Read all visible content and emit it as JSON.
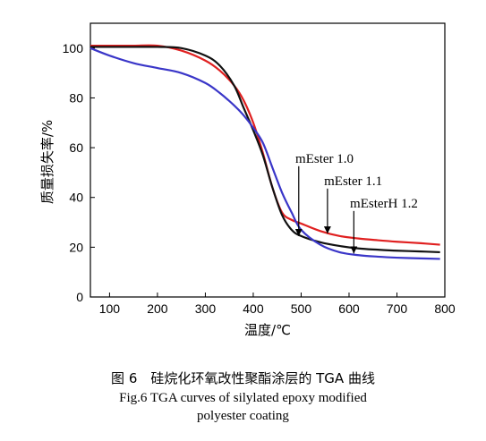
{
  "caption": {
    "zh": "图 6　硅烷化环氧改性聚酯涂层的 TGA 曲线",
    "en_line1": "Fig.6 TGA curves of silylated epoxy modified",
    "en_line2": "polyester coating"
  },
  "chart_data": {
    "type": "line",
    "title": "",
    "xlabel": "温度/℃",
    "ylabel": "质量损失率/%",
    "xlim": [
      60,
      800
    ],
    "ylim": [
      0,
      110
    ],
    "xticks": [
      100,
      200,
      300,
      400,
      500,
      600,
      700,
      800
    ],
    "yticks": [
      0,
      20,
      40,
      60,
      80,
      100
    ],
    "grid": false,
    "legend": "none",
    "series": [
      {
        "color": "#e02020",
        "x": [
          60,
          100,
          150,
          200,
          250,
          300,
          330,
          360,
          380,
          400,
          420,
          440,
          460,
          480,
          500,
          540,
          580,
          620,
          660,
          700,
          750,
          790
        ],
        "y": [
          101,
          101,
          101,
          101,
          99,
          95,
          91,
          85,
          79,
          70,
          58,
          44,
          34,
          31,
          29.5,
          26.5,
          24.5,
          23.5,
          22.8,
          22.2,
          21.6,
          21
        ]
      },
      {
        "color": "#111111",
        "x": [
          60,
          100,
          150,
          200,
          250,
          300,
          330,
          360,
          380,
          400,
          420,
          440,
          460,
          480,
          500,
          540,
          580,
          620,
          660,
          700,
          750,
          790
        ],
        "y": [
          100.5,
          100.5,
          100.5,
          100.5,
          100,
          97,
          93,
          85,
          76,
          67,
          57,
          44,
          33,
          27,
          24.5,
          22,
          20.5,
          19.5,
          19,
          18.6,
          18.3,
          18
        ]
      },
      {
        "color": "#3a36c8",
        "x": [
          60,
          100,
          150,
          200,
          250,
          300,
          330,
          360,
          380,
          400,
          420,
          440,
          460,
          480,
          500,
          540,
          580,
          620,
          660,
          700,
          750,
          790
        ],
        "y": [
          100,
          97,
          94,
          92,
          90,
          86,
          82,
          77,
          73,
          68,
          62,
          52,
          42,
          34,
          27,
          21,
          18,
          16.8,
          16.2,
          15.8,
          15.5,
          15.3
        ]
      }
    ],
    "annotations": [
      {
        "text": "mEster 1.0",
        "x": 488,
        "y": 54,
        "arrow_to": [
          495,
          24.5
        ]
      },
      {
        "text": "mEster 1.1",
        "x": 548,
        "y": 45,
        "arrow_to": [
          555,
          25.5
        ]
      },
      {
        "text": "mEsterH 1.2",
        "x": 602,
        "y": 36,
        "arrow_to": [
          610,
          17.5
        ]
      }
    ]
  }
}
